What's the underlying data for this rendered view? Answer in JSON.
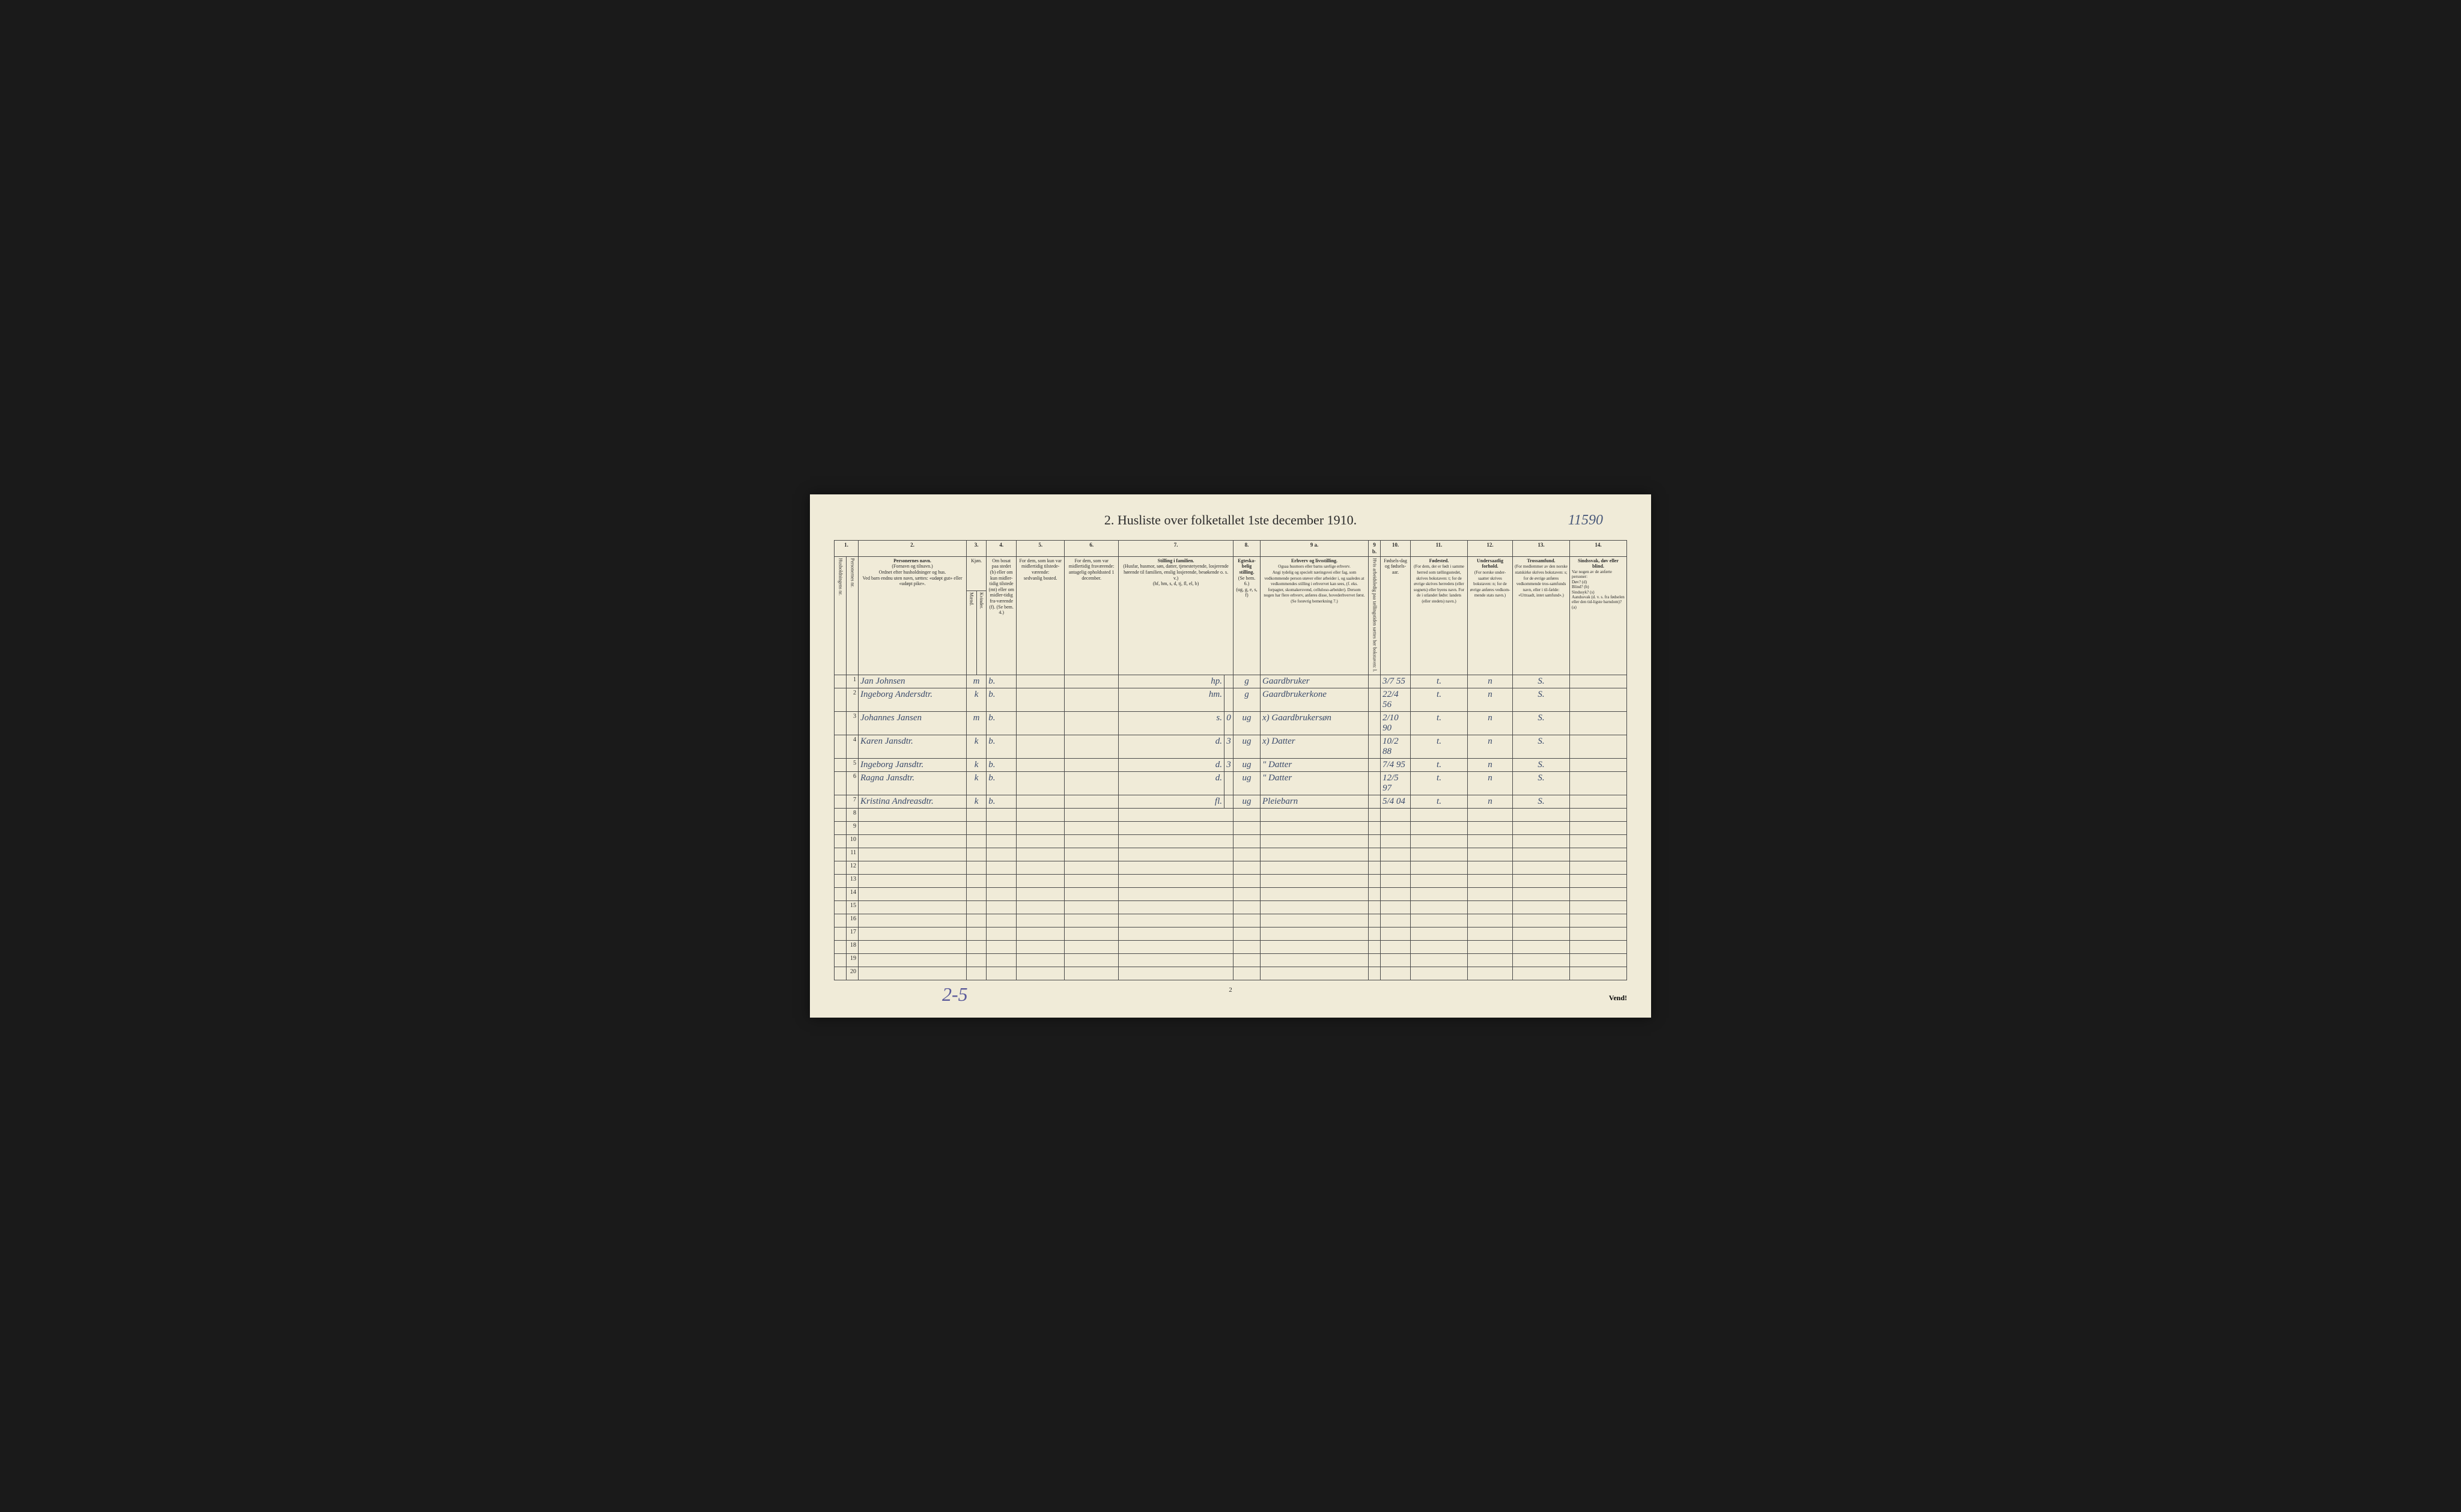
{
  "title": "2.  Husliste over folketallet 1ste december 1910.",
  "top_annotation": "11590",
  "bottom_annotation": "2-5",
  "page_number": "2",
  "vend_text": "Vend!",
  "colors": {
    "page_bg": "#f0ebd8",
    "ink": "#2a2a2a",
    "handwriting": "#3a4a6a",
    "pencil": "#5a5a9a",
    "border": "#4a4a4a"
  },
  "col_numbers": [
    "1.",
    "2.",
    "3.",
    "4.",
    "5.",
    "6.",
    "7.",
    "8.",
    "9 a.",
    "9 b.",
    "10.",
    "11.",
    "12.",
    "13.",
    "14."
  ],
  "headers": {
    "c1": "Husholdningens nr.",
    "c1b": "Personernes nr.",
    "c2_title": "Personernes navn.",
    "c2_sub": "(Fornavn og tilnavn.)\nOrdnet efter husholdninger og hus.\nVed barn endnu uten navn, sættes: «udøpt gut» eller «udøpt pike».",
    "c3_title": "Kjøn.",
    "c3_m": "Mænd.",
    "c3_k": "Kvinder.",
    "c3_sub": "m. k.",
    "c4": "Om bosat paa stedet (b) eller om kun midler-tidig tilstede (mt) eller om midler-tidig fra-værende (f). (Se bem. 4.)",
    "c5": "For dem, som kun var midlertidig tilstede-værende:\nsedvanlig bosted.",
    "c6": "For dem, som var midlertidig fraværende:\nantagelig opholdssted 1 december.",
    "c7_title": "Stilling i familien.",
    "c7_sub": "(Husfar, husmor, søn, datter, tjenestetyende, losjerende hørende til familien, enslig losjerende, besøkende o. s. v.)\n(hf, hm, s, d, tj, fl, el, b)",
    "c8_title": "Egteska-belig stilling.",
    "c8_sub": "(Se bem. 6.)\n(ug, g, e, s, f)",
    "c9a_title": "Erhverv og livsstilling.",
    "c9a_sub": "Ogsaa husmors eller barns særlige erhverv.\nAngi tydelig og specielt næringsvei eller fag, som vedkommende person utøver eller arbeider i, og saaledes at vedkommendes stilling i erhvervet kan sees, (f. eks. forpagter, skomakersvend, celluloso-arbeider). Dersom nogen har flere erhverv, anføres disse, hovederhvervet først.\n(Se forøvrig bemerkning 7.)",
    "c9b": "Hvis arbeidsledig paa tællingstiden sættes her bokstaven: l.",
    "c10": "Fødsels-dag og fødsels-aar.",
    "c11_title": "Fødested.",
    "c11_sub": "(For dem, der er født i samme herred som tællingsstedet, skrives bokstaven: t; for de øvrige skrives herredets (eller sognets) eller byens navn. For de i utlandet fødte: landets (eller stedets) navn.)",
    "c12_title": "Undersaatlig forhold.",
    "c12_sub": "(For norske under-saatter skrives bokstaven: n; for de øvrige anføres vedkom-mende stats navn.)",
    "c13_title": "Trossamfund.",
    "c13_sub": "(For medlemmer av den norske statskirke skrives bokstaven: s; for de øvrige anføres vedkommende tros-samfunds navn, eller i til-fælde: «Uttraadt, intet samfund».)",
    "c14_title": "Sindssvak, døv eller blind.",
    "c14_sub": "Var nogen av de anførte personer:\nDøv?       (d)\nBlind?     (b)\nSindssyk?  (s)\nAandssvak (d. v. s. fra fødselen eller den tid-ligste barndom)? (a)"
  },
  "rows": [
    {
      "n": "1",
      "name": "Jan Johnsen",
      "mk": "m",
      "c4": "b.",
      "c5": "",
      "c6": "",
      "c7": "hp.",
      "c8": "g",
      "c9a": "Gaardbruker",
      "c9b": "",
      "c10": "3/7 55",
      "c11": "t.",
      "c12": "n",
      "c13": "S.",
      "c14": ""
    },
    {
      "n": "2",
      "name": "Ingeborg Andersdtr.",
      "mk": "k",
      "c4": "b.",
      "c5": "",
      "c6": "",
      "c7": "hm.",
      "c8": "g",
      "c9a": "Gaardbrukerkone",
      "c9b": "",
      "c10": "22/4 56",
      "c11": "t.",
      "c12": "n",
      "c13": "S.",
      "c14": ""
    },
    {
      "n": "3",
      "name": "Johannes Jansen",
      "mk": "m",
      "c4": "b.",
      "c5": "",
      "c6": "",
      "c7": "s.",
      "c8": "ug",
      "c9a": "x) Gaardbrukersøn",
      "c9b": "",
      "c10": "2/10 90",
      "c11": "t.",
      "c12": "n",
      "c13": "S.",
      "c14": ""
    },
    {
      "n": "4",
      "name": "Karen Jansdtr.",
      "mk": "k",
      "c4": "b.",
      "c5": "",
      "c6": "",
      "c7": "d.",
      "c8": "ug",
      "c9a": "x) Datter",
      "c9b": "",
      "c10": "10/2 88",
      "c11": "t.",
      "c12": "n",
      "c13": "S.",
      "c14": ""
    },
    {
      "n": "5",
      "name": "Ingeborg Jansdtr.",
      "mk": "k",
      "c4": "b.",
      "c5": "",
      "c6": "",
      "c7": "d.",
      "c8": "ug",
      "c9a": "\" Datter",
      "c9b": "",
      "c10": "7/4 95",
      "c11": "t.",
      "c12": "n",
      "c13": "S.",
      "c14": ""
    },
    {
      "n": "6",
      "name": "Ragna Jansdtr.",
      "mk": "k",
      "c4": "b.",
      "c5": "",
      "c6": "",
      "c7": "d.",
      "c8": "ug",
      "c9a": "\" Datter",
      "c9b": "",
      "c10": "12/5 97",
      "c11": "t.",
      "c12": "n",
      "c13": "S.",
      "c14": ""
    },
    {
      "n": "7",
      "name": "Kristina Andreasdtr.",
      "mk": "k",
      "c4": "b.",
      "c5": "",
      "c6": "",
      "c7": "fl.",
      "c8": "ug",
      "c9a": "Pleiebarn",
      "c9b": "",
      "c10": "5/4 04",
      "c11": "t.",
      "c12": "n",
      "c13": "S.",
      "c14": ""
    }
  ],
  "empty_rows": [
    8,
    9,
    10,
    11,
    12,
    13,
    14,
    15,
    16,
    17,
    18,
    19,
    20
  ],
  "extra_col_7": {
    "2": "",
    "3": "0",
    "4": "3",
    "5": "3"
  }
}
